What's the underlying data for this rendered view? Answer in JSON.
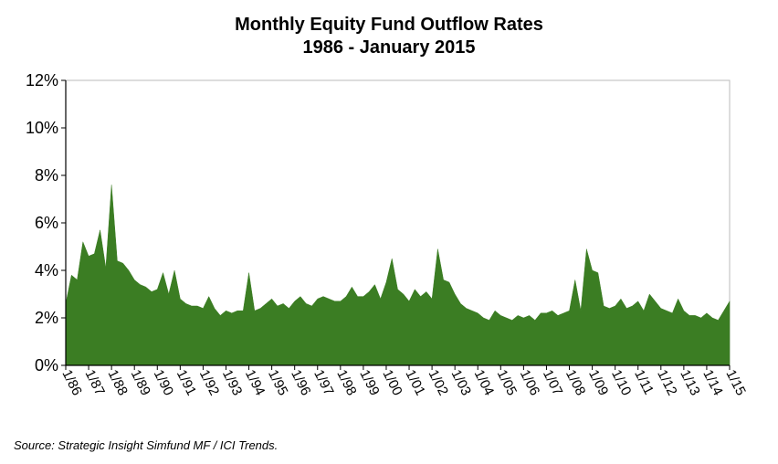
{
  "chart_data": {
    "type": "area",
    "title": "Monthly Equity Fund Outflow Rates",
    "subtitle": "1986 - January 2015",
    "source": "Source: Strategic Insight Simfund MF / ICI Trends.",
    "xlabel": "",
    "ylabel": "",
    "ylim": [
      0,
      12
    ],
    "yticks": [
      0,
      2,
      4,
      6,
      8,
      10,
      12
    ],
    "ytick_labels": [
      "0%",
      "2%",
      "4%",
      "6%",
      "8%",
      "10%",
      "12%"
    ],
    "xticks": [
      "1/86",
      "1/87",
      "1/88",
      "1/89",
      "1/90",
      "1/91",
      "1/92",
      "1/93",
      "1/94",
      "1/95",
      "1/96",
      "1/97",
      "1/98",
      "1/99",
      "1/00",
      "1/01",
      "1/02",
      "1/03",
      "1/04",
      "1/05",
      "1/06",
      "1/07",
      "1/08",
      "1/09",
      "1/10",
      "1/11",
      "1/12",
      "1/13",
      "1/14",
      "1/15"
    ],
    "xlim": [
      "1986-01",
      "2015-01"
    ],
    "grid": false,
    "legend": "none",
    "colors": {
      "fill": "#3b7d23",
      "axis": "#000000",
      "frame": "#bbbbbb"
    },
    "series": [
      {
        "x": [
          "1986-01",
          "1986-04",
          "1986-07",
          "1986-10",
          "1987-01",
          "1987-04",
          "1987-07",
          "1987-10",
          "1988-01",
          "1988-04",
          "1988-07",
          "1988-10",
          "1989-01",
          "1989-04",
          "1989-07",
          "1989-10",
          "1990-01",
          "1990-04",
          "1990-07",
          "1990-10",
          "1991-01",
          "1991-04",
          "1991-07",
          "1991-10",
          "1992-01",
          "1992-04",
          "1992-07",
          "1992-10",
          "1993-01",
          "1993-04",
          "1993-07",
          "1993-10",
          "1994-01",
          "1994-04",
          "1994-07",
          "1994-10",
          "1995-01",
          "1995-04",
          "1995-07",
          "1995-10",
          "1996-01",
          "1996-04",
          "1996-07",
          "1996-10",
          "1997-01",
          "1997-04",
          "1997-07",
          "1997-10",
          "1998-01",
          "1998-04",
          "1998-07",
          "1998-10",
          "1999-01",
          "1999-04",
          "1999-07",
          "1999-10",
          "2000-01",
          "2000-04",
          "2000-07",
          "2000-10",
          "2001-01",
          "2001-04",
          "2001-07",
          "2001-10",
          "2002-01",
          "2002-04",
          "2002-07",
          "2002-10",
          "2003-01",
          "2003-04",
          "2003-07",
          "2003-10",
          "2004-01",
          "2004-04",
          "2004-07",
          "2004-10",
          "2005-01",
          "2005-04",
          "2005-07",
          "2005-10",
          "2006-01",
          "2006-04",
          "2006-07",
          "2006-10",
          "2007-01",
          "2007-04",
          "2007-07",
          "2007-10",
          "2008-01",
          "2008-04",
          "2008-07",
          "2008-10",
          "2009-01",
          "2009-04",
          "2009-07",
          "2009-10",
          "2010-01",
          "2010-04",
          "2010-07",
          "2010-10",
          "2011-01",
          "2011-04",
          "2011-07",
          "2011-10",
          "2012-01",
          "2012-04",
          "2012-07",
          "2012-10",
          "2013-01",
          "2013-04",
          "2013-07",
          "2013-10",
          "2014-01",
          "2014-04",
          "2014-07",
          "2014-10",
          "2015-01"
        ],
        "values": [
          2.6,
          3.8,
          3.6,
          5.2,
          4.6,
          4.7,
          5.7,
          4.1,
          7.6,
          4.4,
          4.3,
          4.0,
          3.6,
          3.4,
          3.3,
          3.1,
          3.2,
          3.9,
          3.0,
          4.0,
          2.8,
          2.6,
          2.5,
          2.5,
          2.4,
          2.9,
          2.4,
          2.1,
          2.3,
          2.2,
          2.3,
          2.3,
          3.9,
          2.3,
          2.4,
          2.6,
          2.8,
          2.5,
          2.6,
          2.4,
          2.7,
          2.9,
          2.6,
          2.5,
          2.8,
          2.9,
          2.8,
          2.7,
          2.7,
          2.9,
          3.3,
          2.9,
          2.9,
          3.1,
          3.4,
          2.8,
          3.5,
          4.5,
          3.2,
          3.0,
          2.7,
          3.2,
          2.9,
          3.1,
          2.8,
          4.9,
          3.6,
          3.5,
          3.0,
          2.6,
          2.4,
          2.3,
          2.2,
          2.0,
          1.9,
          2.3,
          2.1,
          2.0,
          1.9,
          2.1,
          2.0,
          2.1,
          1.9,
          2.2,
          2.2,
          2.3,
          2.1,
          2.2,
          2.3,
          3.6,
          2.3,
          4.9,
          4.0,
          3.9,
          2.5,
          2.4,
          2.5,
          2.8,
          2.4,
          2.5,
          2.7,
          2.3,
          3.0,
          2.7,
          2.4,
          2.3,
          2.2,
          2.8,
          2.3,
          2.1,
          2.1,
          2.0,
          2.2,
          2.0,
          1.9,
          2.3,
          2.7
        ]
      }
    ]
  }
}
